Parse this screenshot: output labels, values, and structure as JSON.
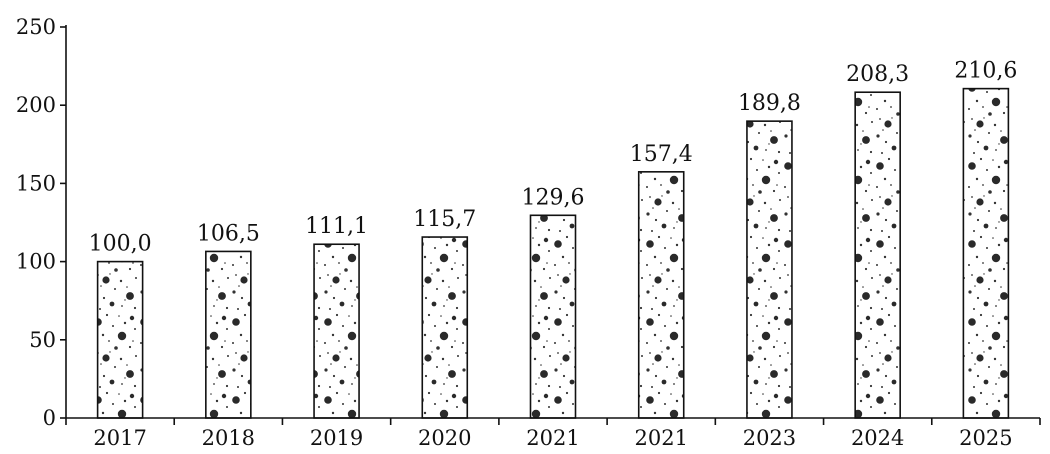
{
  "chart_data": {
    "type": "bar",
    "title": "",
    "xlabel": "",
    "ylabel": "",
    "categories": [
      "2017",
      "2018",
      "2019",
      "2020",
      "2021",
      "2021",
      "2023",
      "2024",
      "2025"
    ],
    "values": [
      100.0,
      106.5,
      111.1,
      115.7,
      129.6,
      157.4,
      189.8,
      208.3,
      210.6
    ],
    "value_labels": [
      "100,0",
      "106,5",
      "111,1",
      "115,7",
      "129,6",
      "157,4",
      "189,8",
      "208,3",
      "210,6"
    ],
    "ylim": [
      0,
      250
    ],
    "yticks": [
      0,
      50,
      100,
      150,
      200,
      250
    ],
    "ytick_labels": [
      "0",
      "50",
      "100",
      "150",
      "200",
      "250"
    ],
    "grid": false,
    "legend": "none",
    "bar_fill": "stippled dots",
    "colors": {
      "bar_background": "#ffffff",
      "bar_outline": "#111111",
      "dots": "#222222",
      "axis": "#111111",
      "text": "#111111"
    }
  }
}
